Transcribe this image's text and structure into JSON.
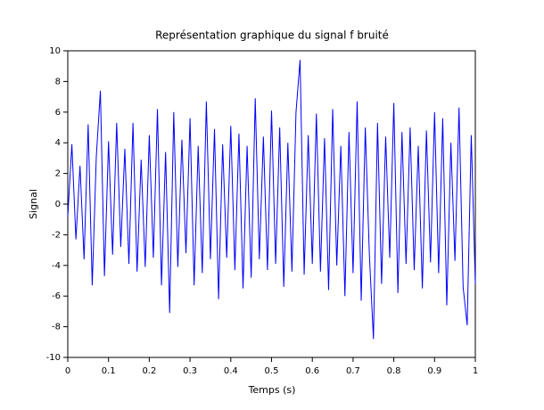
{
  "chart_data": {
    "type": "line",
    "title": "Représentation graphique du signal f bruité",
    "xlabel": "Temps (s)",
    "ylabel": "Signal",
    "color": "#0000ff",
    "x": [
      0,
      0.01,
      0.02,
      0.03,
      0.04,
      0.05,
      0.06,
      0.07,
      0.08,
      0.09,
      0.1,
      0.11,
      0.12,
      0.13,
      0.14,
      0.15,
      0.16,
      0.17,
      0.18,
      0.19,
      0.2,
      0.21,
      0.22,
      0.23,
      0.24,
      0.25,
      0.26,
      0.27,
      0.28,
      0.29,
      0.3,
      0.31,
      0.32,
      0.33,
      0.34,
      0.35,
      0.36,
      0.37,
      0.38,
      0.39,
      0.4,
      0.41,
      0.42,
      0.43,
      0.44,
      0.45,
      0.46,
      0.47,
      0.48,
      0.49,
      0.5,
      0.51,
      0.52,
      0.53,
      0.54,
      0.55,
      0.56,
      0.57,
      0.58,
      0.59,
      0.6,
      0.61,
      0.62,
      0.63,
      0.64,
      0.65,
      0.66,
      0.67,
      0.68,
      0.69,
      0.7,
      0.71,
      0.72,
      0.73,
      0.74,
      0.75,
      0.76,
      0.77,
      0.78,
      0.79,
      0.8,
      0.81,
      0.82,
      0.83,
      0.84,
      0.85,
      0.86,
      0.87,
      0.88,
      0.89,
      0.9,
      0.91,
      0.92,
      0.93,
      0.94,
      0.95,
      0.96,
      0.97,
      0.98,
      0.99,
      1
    ],
    "values": [
      -0.8,
      3.9,
      -2.3,
      2.5,
      -3.6,
      5.2,
      -5.3,
      3.1,
      7.4,
      -4.7,
      4.1,
      -3.3,
      5.3,
      -2.8,
      3.6,
      -3.9,
      5.3,
      -4.4,
      2.9,
      -4.1,
      4.5,
      -3.5,
      6.2,
      -5.3,
      3.4,
      -7.1,
      6.0,
      -4.1,
      4.2,
      -3.2,
      5.6,
      -5.3,
      3.8,
      -4.5,
      6.7,
      -3.6,
      4.9,
      -6.2,
      3.9,
      -3.5,
      5.1,
      -4.3,
      4.6,
      -5.5,
      3.8,
      -4.8,
      6.9,
      -3.6,
      4.4,
      -4.3,
      6.1,
      -3.9,
      5.0,
      -5.4,
      4.0,
      -4.4,
      6.0,
      9.4,
      -4.6,
      4.5,
      -3.9,
      5.9,
      -4.4,
      4.3,
      -5.6,
      6.2,
      -4.0,
      3.8,
      -6.0,
      4.7,
      -4.5,
      6.7,
      -6.3,
      5.0,
      -3.3,
      -8.8,
      5.3,
      -5.2,
      4.4,
      -3.5,
      6.6,
      -5.8,
      4.7,
      -3.9,
      5.0,
      -4.3,
      3.8,
      -5.5,
      4.8,
      -3.8,
      6.0,
      -4.5,
      5.6,
      -6.6,
      4.0,
      -3.7,
      6.3,
      -5.4,
      -7.9,
      4.5,
      -5.2
    ],
    "xlim": [
      0,
      1
    ],
    "xticks": [
      0,
      0.1,
      0.2,
      0.3,
      0.4,
      0.5,
      0.6,
      0.7,
      0.8,
      0.9,
      1
    ],
    "ylim": [
      -10,
      10
    ],
    "yticks": [
      -10,
      -8,
      -6,
      -4,
      -2,
      0,
      2,
      4,
      6,
      8,
      10
    ]
  }
}
